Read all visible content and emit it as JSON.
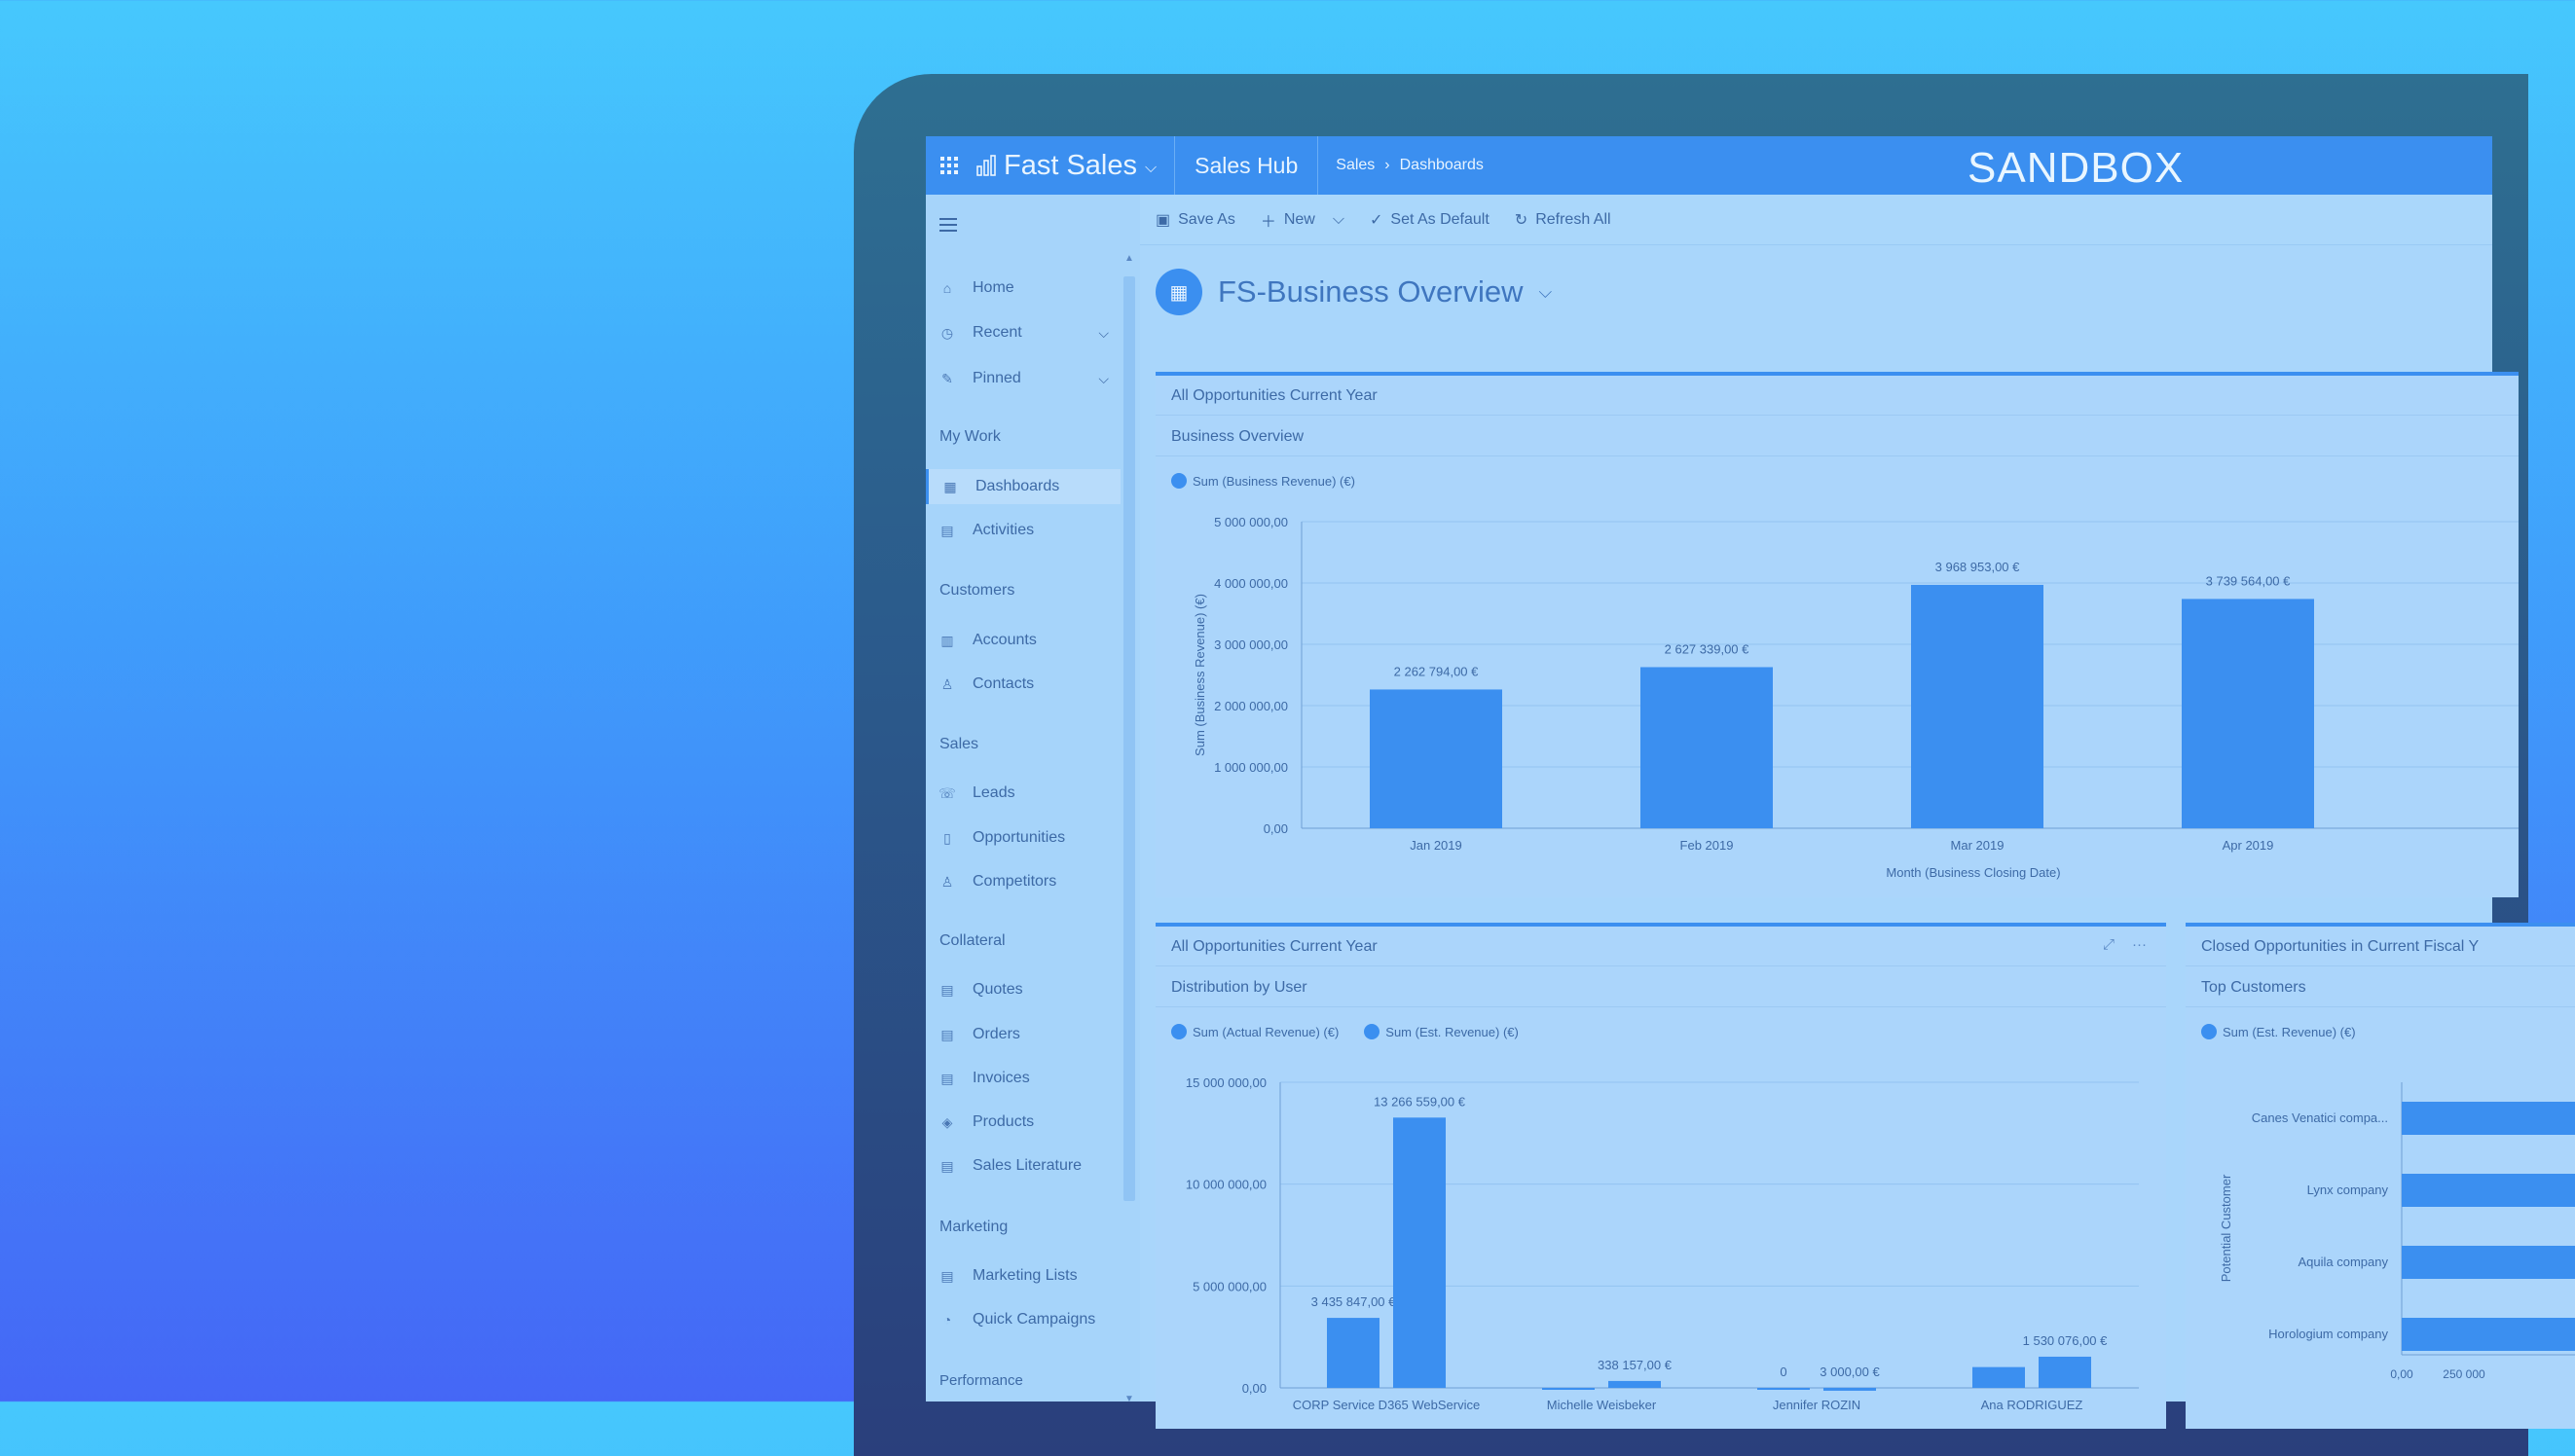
{
  "topbar": {
    "app_name": "Fast Sales",
    "hub": "Sales Hub",
    "breadcrumb": [
      "Sales",
      "Dashboards"
    ],
    "env_label": "SANDBOX"
  },
  "sidebar": {
    "items_top": [
      {
        "label": "Home",
        "icon": "home-icon"
      },
      {
        "label": "Recent",
        "icon": "clock-icon"
      },
      {
        "label": "Pinned",
        "icon": "pin-icon"
      }
    ],
    "groups": [
      {
        "title": "My Work",
        "items": [
          {
            "label": "Dashboards"
          },
          {
            "label": "Activities"
          }
        ]
      },
      {
        "title": "Customers",
        "items": [
          {
            "label": "Accounts"
          },
          {
            "label": "Contacts"
          }
        ]
      },
      {
        "title": "Sales",
        "items": [
          {
            "label": "Leads"
          },
          {
            "label": "Opportunities"
          },
          {
            "label": "Competitors"
          }
        ]
      },
      {
        "title": "Collateral",
        "items": [
          {
            "label": "Quotes"
          },
          {
            "label": "Orders"
          },
          {
            "label": "Invoices"
          },
          {
            "label": "Products"
          },
          {
            "label": "Sales Literature"
          }
        ]
      },
      {
        "title": "Marketing",
        "items": [
          {
            "label": "Marketing Lists"
          },
          {
            "label": "Quick Campaigns"
          }
        ]
      },
      {
        "title": "Performance",
        "items": []
      }
    ]
  },
  "commands": [
    "Save As",
    "New",
    "Set As Default",
    "Refresh All"
  ],
  "dashboard": {
    "title": "FS-Business Overview"
  },
  "cards": {
    "overview": {
      "title": "All Opportunities Current Year",
      "subtitle": "Business Overview"
    },
    "by_user": {
      "title": "All Opportunities Current Year",
      "subtitle": "Distribution by User"
    },
    "top_customers": {
      "title": "Closed Opportunities in Current Fiscal Y",
      "subtitle": "Top Customers"
    }
  },
  "chart_data": [
    {
      "type": "bar",
      "title": "Business Overview",
      "series": [
        {
          "name": "Sum (Business Revenue) (€)",
          "values": [
            2262794,
            2627339,
            3968953,
            3739564
          ]
        }
      ],
      "categories": [
        "Jan 2019",
        "Feb 2019",
        "Mar 2019",
        "Apr 2019"
      ],
      "data_labels": [
        "2 262 794,00 €",
        "2 627 339,00 €",
        "3 968 953,00 €",
        "3 739 564,00 €"
      ],
      "ylabel": "Sum (Business Revenue) (€)",
      "xlabel": "Month (Business Closing Date)",
      "ylim": [
        0,
        5000000
      ],
      "yticks": [
        "0,00",
        "1 000 000,00",
        "2 000 000,00",
        "3 000 000,00",
        "4 000 000,00",
        "5 000 000,00"
      ],
      "grid": true
    },
    {
      "type": "bar",
      "title": "Distribution by User",
      "categories": [
        "CORP Service D365 WebService",
        "Michelle Weisbeker",
        "Jennifer ROZIN",
        "Ana RODRIGUEZ"
      ],
      "series": [
        {
          "name": "Sum (Actual Revenue) (€)",
          "values": [
            3435847,
            0,
            0,
            1020000
          ]
        },
        {
          "name": "Sum (Est. Revenue) (€)",
          "values": [
            13266559,
            338157,
            3000,
            1530076
          ]
        }
      ],
      "data_labels": [
        [
          "3 435 847,00 €",
          "",
          "0",
          ""
        ],
        [
          "13 266 559,00 €",
          "338 157,00 €",
          "3 000,00 €",
          "1 530 076,00 €"
        ]
      ],
      "ylim": [
        0,
        15000000
      ],
      "yticks": [
        "0,00",
        "5 000 000,00",
        "10 000 000,00",
        "15 000 000,00"
      ],
      "grid": true
    },
    {
      "type": "bar",
      "orientation": "horizontal",
      "title": "Top Customers",
      "series": [
        {
          "name": "Sum (Est. Revenue) (€)"
        }
      ],
      "categories": [
        "Canes Venatici compa...",
        "Lynx company",
        "Aquila company",
        "Horologium company"
      ],
      "ylabel": "Potential Customer",
      "xticks": [
        "0,00",
        "250 000"
      ]
    }
  ]
}
